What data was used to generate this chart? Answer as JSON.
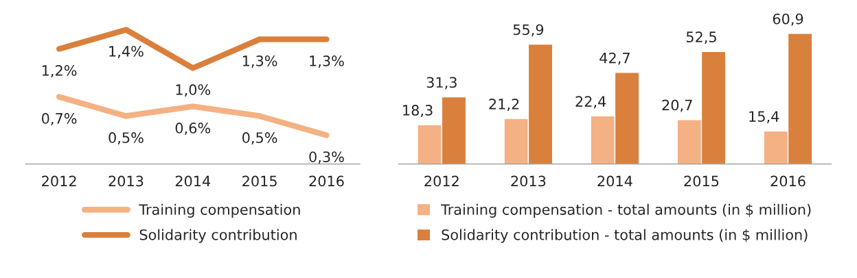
{
  "chart_data": [
    {
      "type": "line",
      "categories": [
        "2012",
        "2013",
        "2014",
        "2015",
        "2016"
      ],
      "tick_labels": "x",
      "grid": false,
      "legend": "bottom",
      "marker": "none",
      "line_style": "solid",
      "series": [
        {
          "name": "Training compensation",
          "color": "#f4b183",
          "values": [
            0.7,
            0.5,
            0.6,
            0.5,
            0.3
          ],
          "value_labels": [
            "0,7%",
            "0,5%",
            "0,6%",
            "0,5%",
            "0,3%"
          ]
        },
        {
          "name": "Solidarity contribution",
          "color": "#d9803c",
          "values": [
            1.2,
            1.4,
            1.0,
            1.3,
            1.3
          ],
          "value_labels": [
            "1,2%",
            "1,4%",
            "1,0%",
            "1,3%",
            "1,3%"
          ]
        }
      ]
    },
    {
      "type": "bar",
      "categories": [
        "2012",
        "2013",
        "2014",
        "2015",
        "2016"
      ],
      "tick_labels": "x",
      "grid": false,
      "legend": "bottom",
      "series": [
        {
          "name": "Training compensation - total amounts (in $ million)",
          "color": "#f4b183",
          "values": [
            18.3,
            21.2,
            22.4,
            20.7,
            15.4
          ],
          "value_labels": [
            "18,3",
            "21,2",
            "22,4",
            "20,7",
            "15,4"
          ]
        },
        {
          "name": "Solidarity contribution - total amounts (in $ million)",
          "color": "#d9803c",
          "values": [
            31.3,
            55.9,
            42.7,
            52.5,
            60.9
          ],
          "value_labels": [
            "31,3",
            "55,9",
            "42,7",
            "52,5",
            "60,9"
          ]
        }
      ]
    }
  ]
}
